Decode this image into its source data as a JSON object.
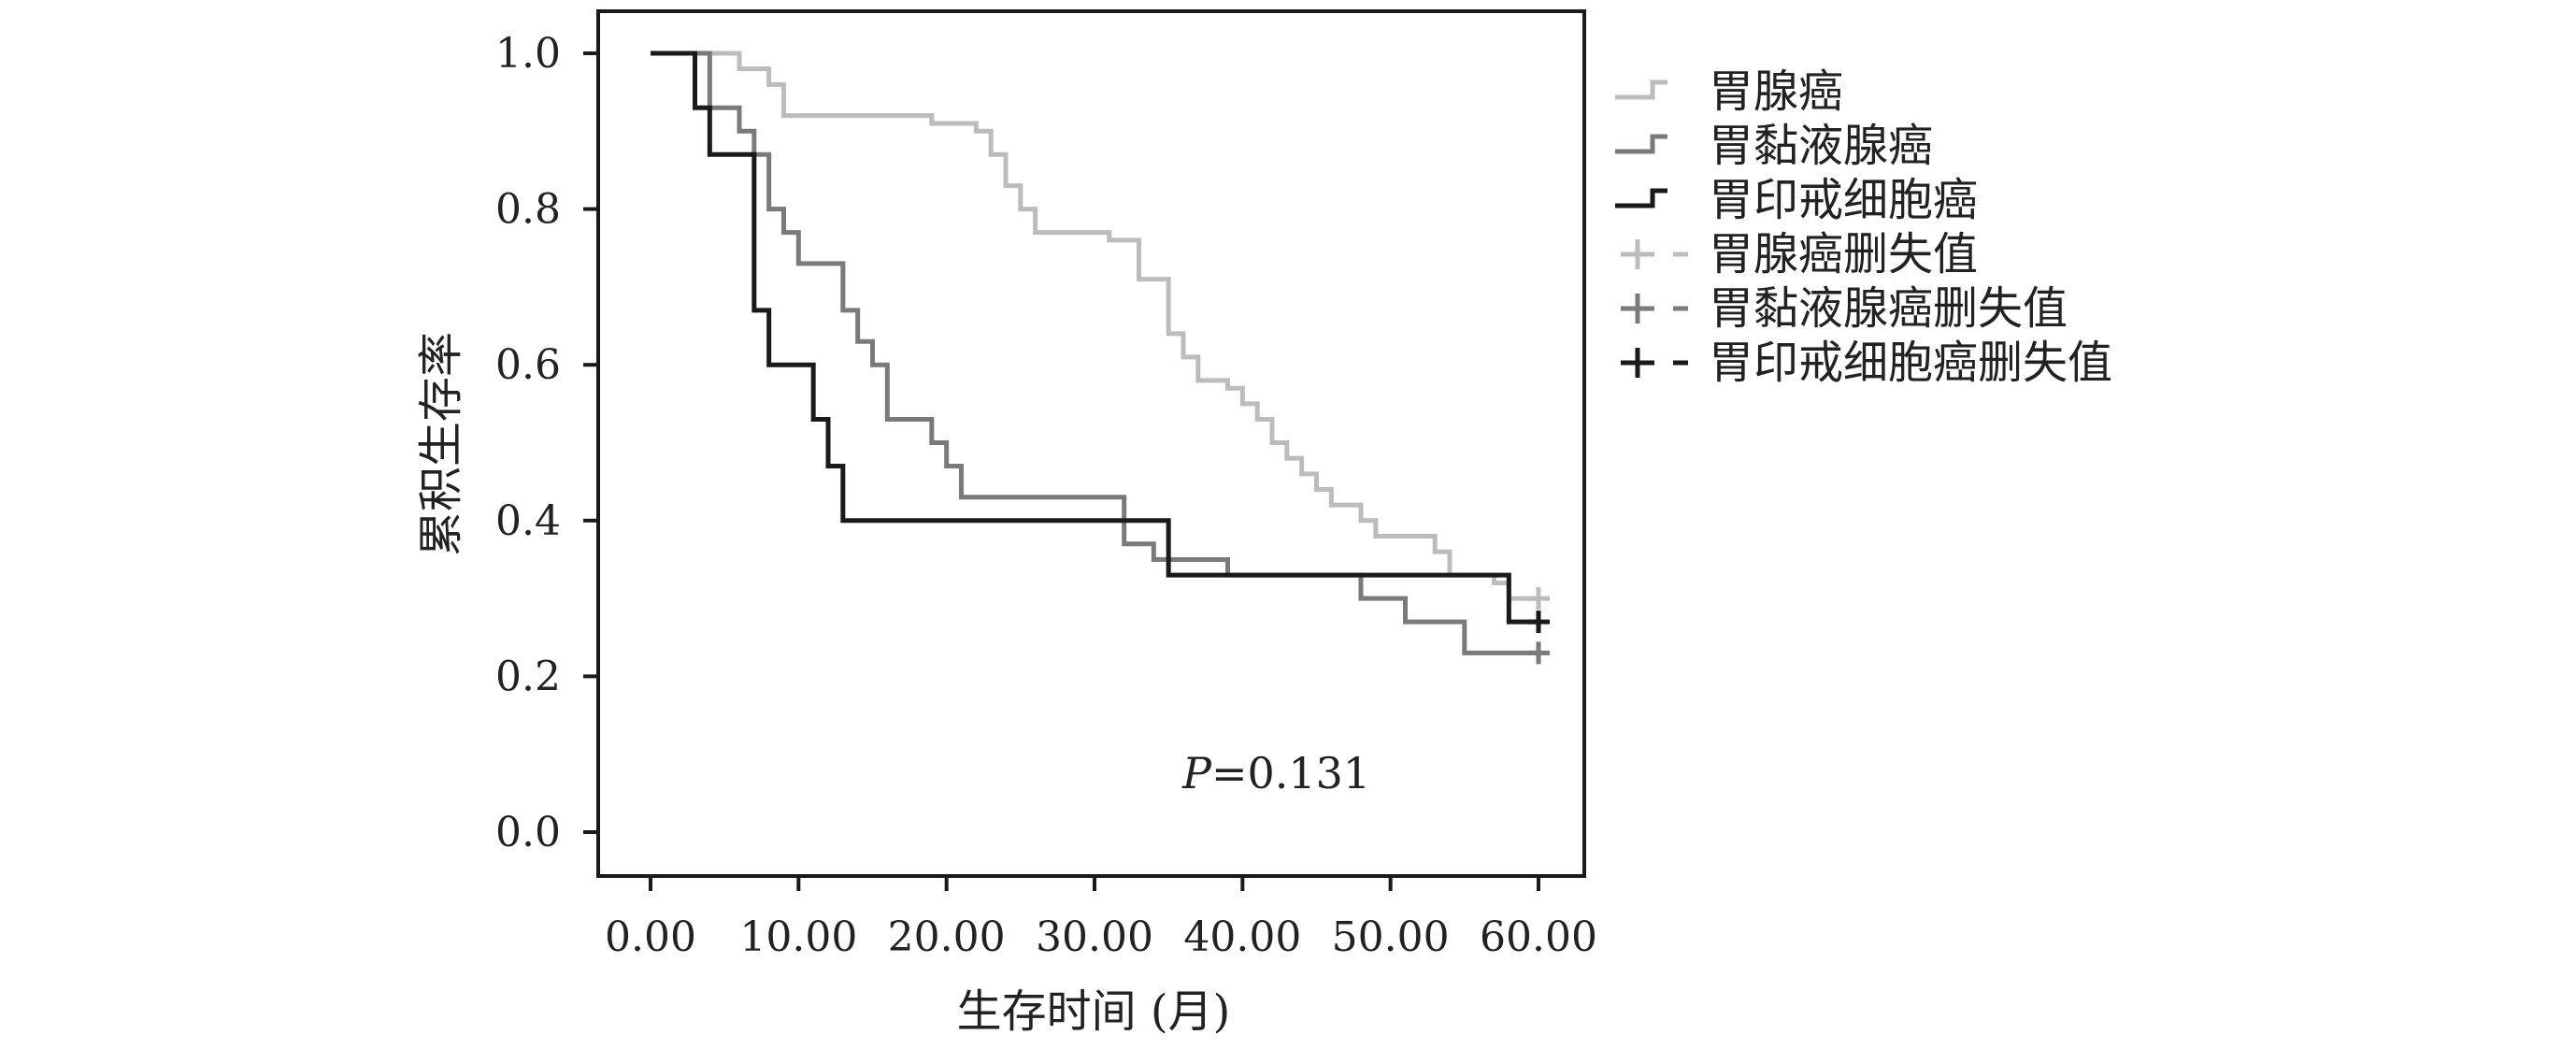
{
  "chart_data": {
    "type": "line",
    "subtype": "kaplan-meier step curves",
    "title": "",
    "xlabel": "生存时间 (月)",
    "ylabel": "累积生存率",
    "xlim": [
      0,
      60
    ],
    "ylim": [
      0,
      1.0
    ],
    "x_ticks": [
      "0.00",
      "10.00",
      "20.00",
      "30.00",
      "40.00",
      "50.00",
      "60.00"
    ],
    "x_tick_values": [
      0,
      10,
      20,
      30,
      40,
      50,
      60
    ],
    "y_ticks": [
      "0.0",
      "0.2",
      "0.4",
      "0.6",
      "0.8",
      "1.0"
    ],
    "y_tick_values": [
      0,
      0.2,
      0.4,
      0.6,
      0.8,
      1.0
    ],
    "grid": false,
    "legend_position": "right",
    "annotation": {
      "p_label": "P",
      "p_value": "=0.131"
    },
    "series": [
      {
        "name": "胃腺癌",
        "color": "#bcbcbc",
        "censor_label": "胃腺癌删失值",
        "points": [
          [
            0,
            1.0
          ],
          [
            5,
            1.0
          ],
          [
            6,
            0.98
          ],
          [
            8,
            0.96
          ],
          [
            9,
            0.92
          ],
          [
            19,
            0.92
          ],
          [
            19,
            0.91
          ],
          [
            22,
            0.9
          ],
          [
            23,
            0.87
          ],
          [
            24,
            0.83
          ],
          [
            25,
            0.8
          ],
          [
            26,
            0.77
          ],
          [
            31,
            0.77
          ],
          [
            31,
            0.76
          ],
          [
            33,
            0.74
          ],
          [
            33,
            0.71
          ],
          [
            35,
            0.71
          ],
          [
            35,
            0.64
          ],
          [
            36,
            0.61
          ],
          [
            37,
            0.58
          ],
          [
            39,
            0.57
          ],
          [
            40,
            0.55
          ],
          [
            41,
            0.53
          ],
          [
            42,
            0.5
          ],
          [
            43,
            0.48
          ],
          [
            44,
            0.46
          ],
          [
            45,
            0.44
          ],
          [
            46,
            0.42
          ],
          [
            48,
            0.4
          ],
          [
            49,
            0.38
          ],
          [
            53,
            0.36
          ],
          [
            54,
            0.33
          ],
          [
            57,
            0.32
          ],
          [
            58,
            0.3
          ],
          [
            60,
            0.3
          ]
        ],
        "censored": [
          [
            60,
            0.3
          ]
        ]
      },
      {
        "name": "胃黏液腺癌",
        "color": "#7a7a7a",
        "censor_label": "胃黏液腺癌删失值",
        "points": [
          [
            0,
            1.0
          ],
          [
            4,
            1.0
          ],
          [
            4,
            0.93
          ],
          [
            6,
            0.93
          ],
          [
            6,
            0.9
          ],
          [
            7,
            0.87
          ],
          [
            8,
            0.83
          ],
          [
            8,
            0.8
          ],
          [
            9,
            0.77
          ],
          [
            10,
            0.73
          ],
          [
            13,
            0.73
          ],
          [
            13,
            0.67
          ],
          [
            14,
            0.63
          ],
          [
            15,
            0.6
          ],
          [
            16,
            0.57
          ],
          [
            16,
            0.53
          ],
          [
            19,
            0.53
          ],
          [
            19,
            0.5
          ],
          [
            20,
            0.47
          ],
          [
            21,
            0.43
          ],
          [
            32,
            0.43
          ],
          [
            32,
            0.37
          ],
          [
            34,
            0.37
          ],
          [
            34,
            0.35
          ],
          [
            39,
            0.35
          ],
          [
            39,
            0.33
          ],
          [
            48,
            0.33
          ],
          [
            48,
            0.3
          ],
          [
            51,
            0.3
          ],
          [
            51,
            0.27
          ],
          [
            55,
            0.27
          ],
          [
            55,
            0.23
          ],
          [
            60,
            0.23
          ]
        ],
        "censored": [
          [
            60,
            0.23
          ]
        ]
      },
      {
        "name": "胃印戒细胞癌",
        "color": "#1a1a1a",
        "censor_label": "胃印戒细胞癌删失值",
        "points": [
          [
            0,
            1.0
          ],
          [
            3,
            1.0
          ],
          [
            3,
            0.93
          ],
          [
            4,
            0.93
          ],
          [
            4,
            0.87
          ],
          [
            7,
            0.87
          ],
          [
            7,
            0.67
          ],
          [
            8,
            0.67
          ],
          [
            8,
            0.6
          ],
          [
            11,
            0.6
          ],
          [
            11,
            0.53
          ],
          [
            12,
            0.53
          ],
          [
            12,
            0.47
          ],
          [
            13,
            0.47
          ],
          [
            13,
            0.4
          ],
          [
            35,
            0.4
          ],
          [
            35,
            0.33
          ],
          [
            58,
            0.33
          ],
          [
            58,
            0.27
          ],
          [
            60,
            0.27
          ]
        ],
        "censored": [
          [
            60,
            0.27
          ]
        ]
      }
    ]
  }
}
